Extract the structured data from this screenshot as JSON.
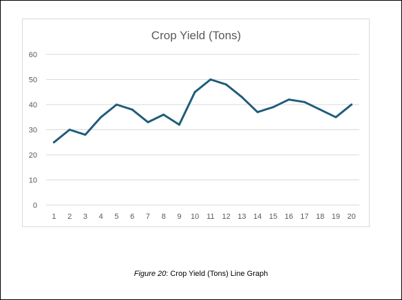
{
  "caption": {
    "label": "Figure 20",
    "text": ": Crop Yield (Tons) Line Graph"
  },
  "chart_data": {
    "type": "line",
    "title": "Crop Yield (Tons)",
    "xlabel": "",
    "ylabel": "",
    "categories": [
      "1",
      "2",
      "3",
      "4",
      "5",
      "6",
      "7",
      "8",
      "9",
      "10",
      "11",
      "12",
      "13",
      "14",
      "15",
      "16",
      "17",
      "18",
      "19",
      "20"
    ],
    "series": [
      {
        "values": [
          25,
          30,
          28,
          35,
          40,
          38,
          33,
          36,
          32,
          45,
          50,
          48,
          43,
          37,
          39,
          42,
          41,
          38,
          35,
          40
        ]
      }
    ],
    "ylim": [
      0,
      60
    ],
    "yticks": [
      0,
      10,
      20,
      30,
      40,
      50,
      60
    ],
    "grid": true,
    "legend": "none",
    "colors": {
      "line": "#1f5c7a",
      "grid": "#d9d9d9",
      "text": "#595959"
    }
  }
}
